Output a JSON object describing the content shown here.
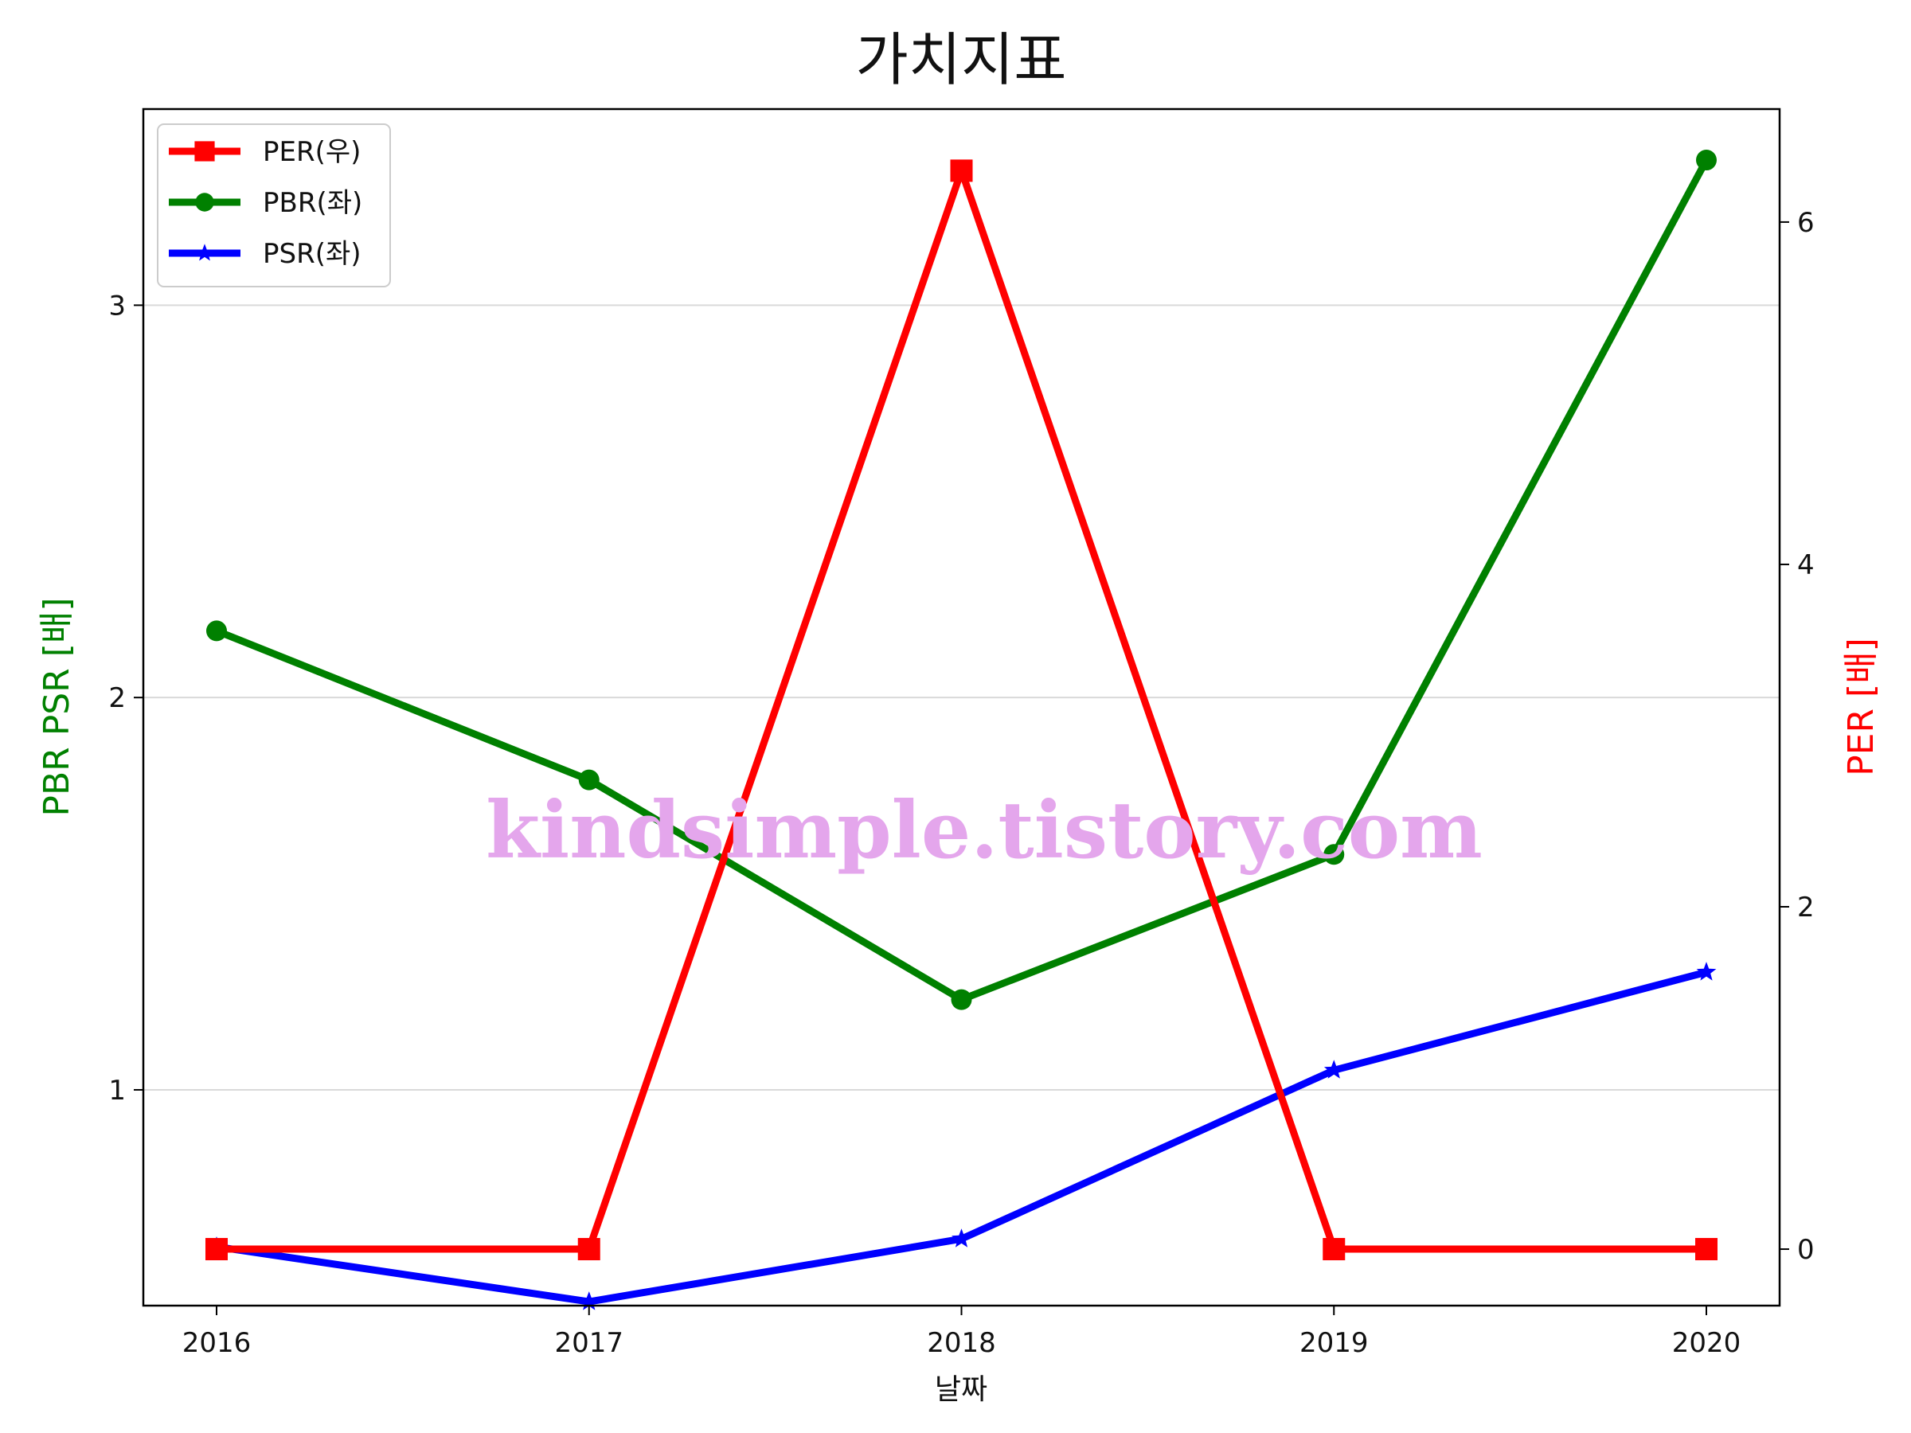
{
  "chart_data": {
    "type": "line",
    "title": "가치지표",
    "xlabel": "날짜",
    "ylabel_left": "PBR PSR [배]",
    "ylabel_right": "PER [배]",
    "categories": [
      "2016",
      "2017",
      "2018",
      "2019",
      "2020"
    ],
    "left_axis": {
      "ylim": [
        0.45,
        3.5
      ],
      "ticks": [
        "1",
        "2",
        "3"
      ],
      "tick_values": [
        1,
        2,
        3
      ]
    },
    "right_axis": {
      "ylim": [
        -0.33,
        6.66
      ],
      "ticks": [
        "0",
        "2",
        "4",
        "6"
      ],
      "tick_values": [
        0,
        2,
        4,
        6
      ]
    },
    "grid": {
      "y": true,
      "x": false
    },
    "legend_position": "upper-left",
    "series": [
      {
        "name": "PER(우)",
        "axis": "right",
        "marker": "square",
        "color": "#ff0000",
        "values": [
          0,
          0,
          6.3,
          0,
          0
        ]
      },
      {
        "name": "PBR(좌)",
        "axis": "left",
        "marker": "circle",
        "color": "#008000",
        "values": [
          2.17,
          1.79,
          1.23,
          1.6,
          3.37
        ]
      },
      {
        "name": "PSR(좌)",
        "axis": "left",
        "marker": "star",
        "color": "#0000ff",
        "values": [
          0.6,
          0.46,
          0.62,
          1.05,
          1.3
        ]
      }
    ],
    "watermark": "kindsimple.tistory.com"
  }
}
